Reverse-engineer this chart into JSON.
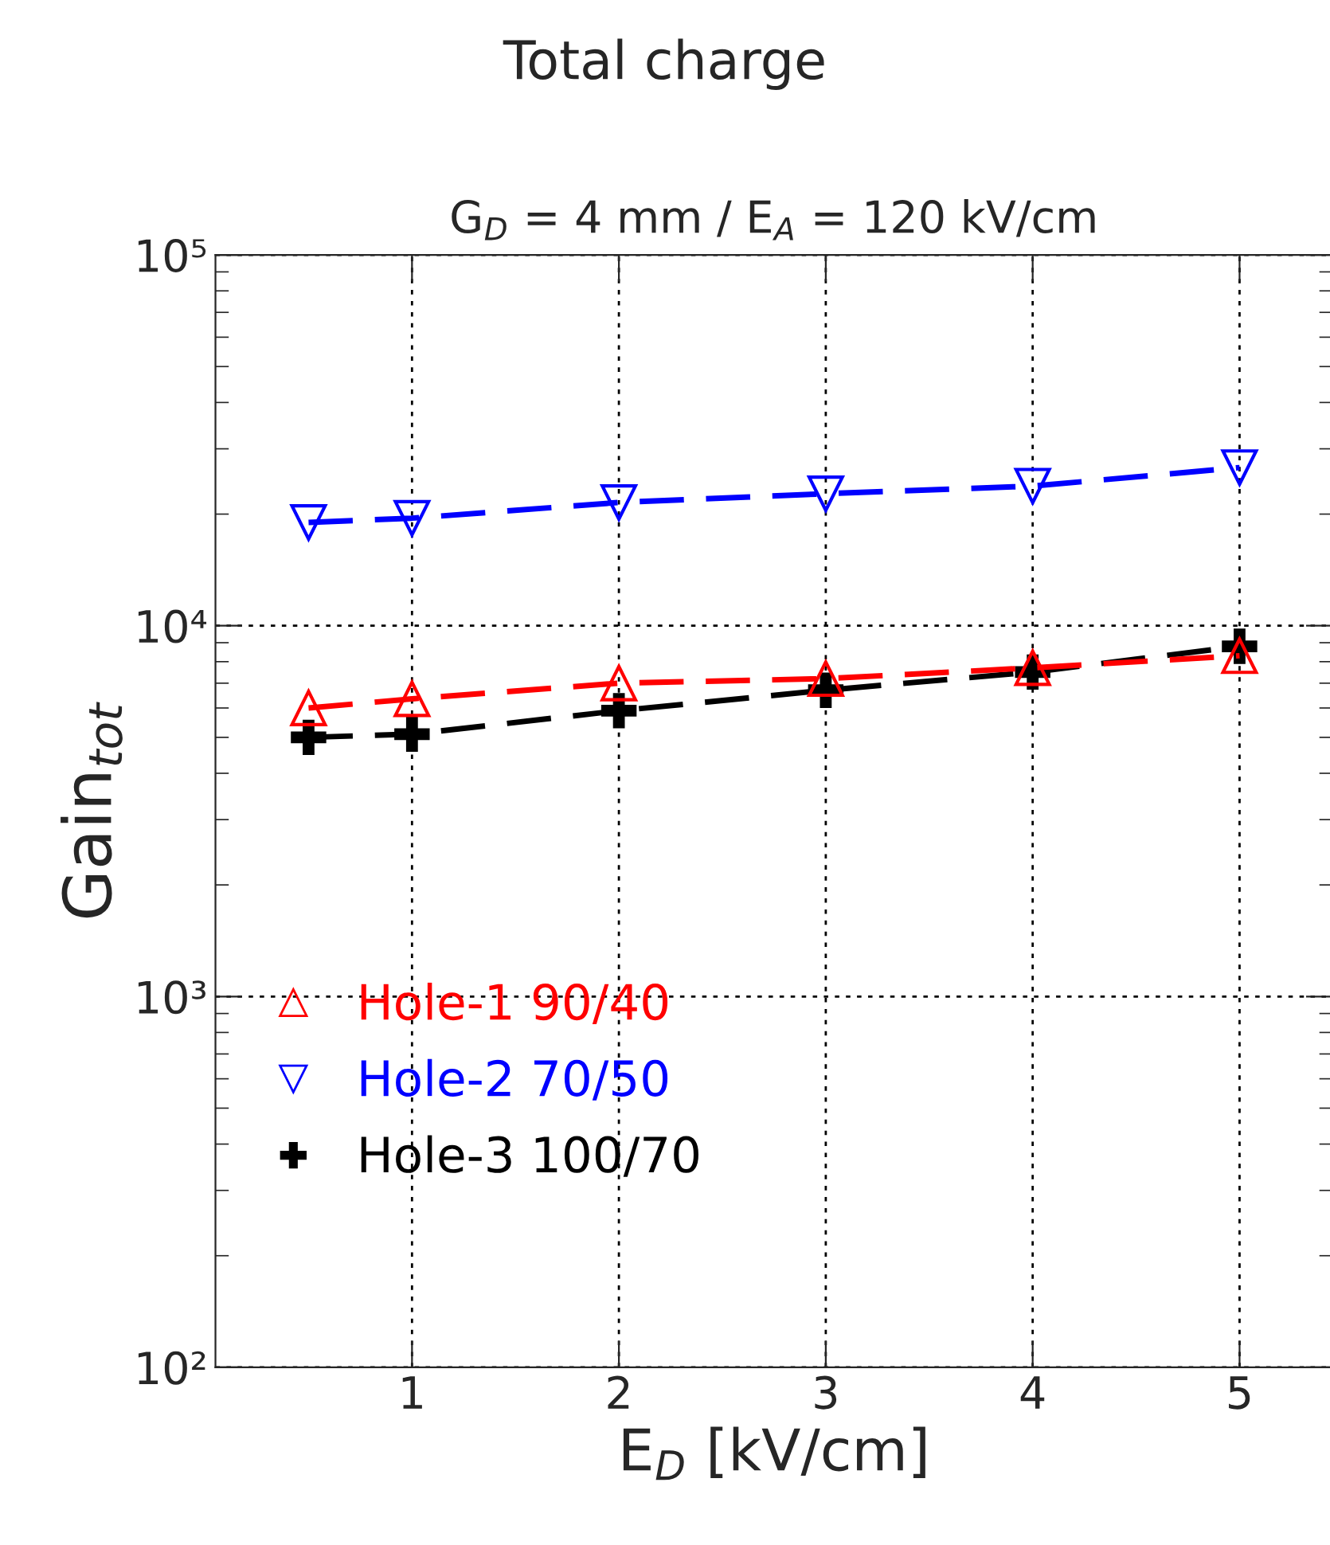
{
  "chart_data": {
    "type": "line",
    "title": "Total charge",
    "subtitle": "G$_{D}$ = 4 mm / E$_{A}$ = 120 kV/cm",
    "xlabel": "E$_{D}$ [kV/cm]",
    "ylabel": "Gain$_{tot}$",
    "x": [
      0.5,
      1,
      2,
      3,
      4,
      5
    ],
    "series": [
      {
        "name": "Hole-1 90/40",
        "color": "#ff0000",
        "marker": "triangle",
        "values": [
          6000,
          6350,
          7000,
          7200,
          7700,
          8300
        ]
      },
      {
        "name": "Hole-2 70/50",
        "color": "#0000ff",
        "marker": "triangle_down",
        "values": [
          19000,
          19500,
          21500,
          22700,
          23800,
          26700
        ]
      },
      {
        "name": "Hole-3 100/70",
        "color": "#000000",
        "marker": "cross",
        "values": [
          5000,
          5100,
          5900,
          6700,
          7500,
          8800
        ]
      }
    ],
    "log": "y",
    "xlim": [
      0.05,
      5.45
    ],
    "ylim": [
      100,
      100000
    ],
    "xticks": [
      1,
      2,
      3,
      4,
      5
    ],
    "yticks": [
      {
        "value": 100,
        "label": "10²"
      },
      {
        "value": 1000,
        "label": "10³"
      },
      {
        "value": 10000,
        "label": "10⁴"
      },
      {
        "value": 100000,
        "label": "10⁵"
      }
    ],
    "grid": true,
    "legend": "bottom left",
    "line_style": "dashed"
  }
}
